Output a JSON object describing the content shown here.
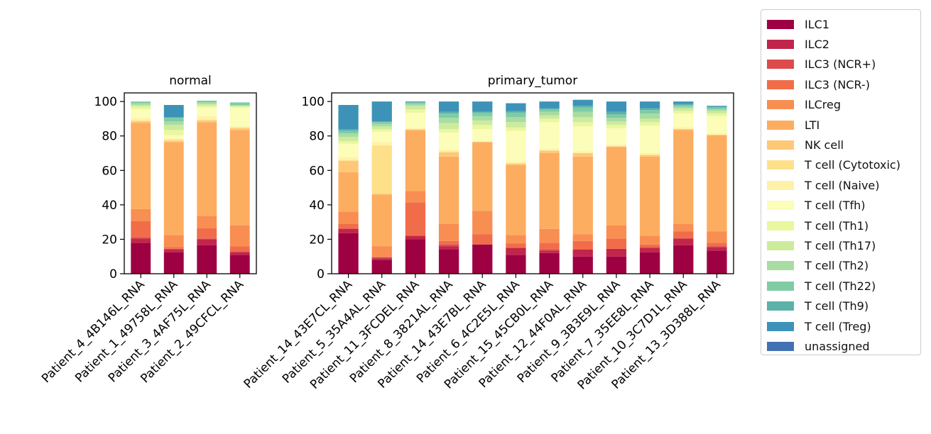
{
  "chart_data": [
    {
      "type": "bar",
      "stacked": true,
      "title": "normal",
      "ylim": [
        0,
        105
      ],
      "yticks": [
        0,
        20,
        40,
        60,
        80,
        100
      ],
      "categories": [
        "Patient_4_4B146L_RNA",
        "Patient_1_49758L_RNA",
        "Patient_3_4AF75L_RNA",
        "Patient_2_49CFCL_RNA"
      ],
      "series": [
        {
          "name": "ILC1",
          "values": [
            18,
            12.5,
            16.5,
            11
          ]
        },
        {
          "name": "ILC2",
          "values": [
            2.5,
            1.5,
            3.5,
            1.5
          ]
        },
        {
          "name": "ILC3 (NCR+)",
          "values": [
            0.5,
            0.5,
            0.5,
            0.5
          ]
        },
        {
          "name": "ILC3 (NCR-)",
          "values": [
            9.5,
            1.0,
            6.0,
            3.0
          ]
        },
        {
          "name": "ILCreg",
          "values": [
            7,
            7,
            7,
            12
          ]
        },
        {
          "name": "LTI",
          "values": [
            50,
            54,
            54.5,
            55.5
          ]
        },
        {
          "name": "NK cell",
          "values": [
            1,
            0.5,
            1,
            1
          ]
        },
        {
          "name": "T cell (Cytotoxic)",
          "values": [
            0.5,
            1.0,
            0.5,
            0.5
          ]
        },
        {
          "name": "T cell (Naive)",
          "values": [
            1.5,
            0.5,
            2.0,
            0.5
          ]
        },
        {
          "name": "T cell (Tfh)",
          "values": [
            5,
            2,
            5,
            11
          ]
        },
        {
          "name": "T cell (Th1)",
          "values": [
            1.5,
            3.0,
            1.0,
            0.5
          ]
        },
        {
          "name": "T cell (Th17)",
          "values": [
            1,
            3,
            1,
            0.5
          ]
        },
        {
          "name": "T cell (Th2)",
          "values": [
            1,
            2,
            1,
            0.5
          ]
        },
        {
          "name": "T cell (Th22)",
          "values": [
            1,
            2,
            1,
            1.5
          ]
        },
        {
          "name": "T cell (Th9)",
          "values": [
            0,
            0.5,
            0,
            0
          ]
        },
        {
          "name": "T cell (Treg)",
          "values": [
            0,
            7,
            0,
            0
          ]
        },
        {
          "name": "unassigned",
          "values": [
            0,
            0,
            0,
            0
          ]
        }
      ]
    },
    {
      "type": "bar",
      "stacked": true,
      "title": "primary_tumor",
      "ylim": [
        0,
        105
      ],
      "yticks": [
        0,
        20,
        40,
        60,
        80,
        100
      ],
      "categories": [
        "Patient_14_43E7CL_RNA",
        "Patient_5_35A4AL_RNA",
        "Patient_11_3FCDEL_RNA",
        "Patient_8_3821AL_RNA",
        "Patient_14_43E7BL_RNA",
        "Patient_6_4C2E5L_RNA",
        "Patient_15_45CB0L_RNA",
        "Patient_12_44F0AL_RNA",
        "Patient_9_3B3E9L_RNA",
        "Patient_7_35EE8L_RNA",
        "Patient_10_3C7D1L_RNA",
        "Patient_13_3D388L_RNA"
      ],
      "series": [
        {
          "name": "ILC1",
          "values": [
            23.5,
            8,
            20,
            14,
            17,
            11,
            12,
            10,
            10,
            12.5,
            16.5,
            13.5
          ]
        },
        {
          "name": "ILC2",
          "values": [
            2.5,
            1,
            2,
            2,
            0,
            4,
            1.5,
            4,
            4.5,
            2.5,
            4,
            2
          ]
        },
        {
          "name": "ILC3 (NCR+)",
          "values": [
            0.5,
            0.5,
            0,
            1,
            0,
            0,
            0.5,
            0,
            0,
            0.5,
            0,
            0.5
          ]
        },
        {
          "name": "ILC3 (NCR-)",
          "values": [
            2.5,
            0.5,
            19.5,
            2,
            6,
            2.5,
            4,
            5,
            6,
            1.5,
            4,
            2
          ]
        },
        {
          "name": "ILCreg",
          "values": [
            7,
            6,
            6.5,
            10,
            13.5,
            5,
            8,
            4,
            7.5,
            5,
            4.5,
            6.5
          ]
        },
        {
          "name": "LTI",
          "values": [
            23,
            30,
            35.5,
            39,
            40,
            40.5,
            44,
            45,
            45.5,
            46,
            54.5,
            56
          ]
        },
        {
          "name": "NK cell",
          "values": [
            6.5,
            0.5,
            0,
            2.5,
            0,
            1,
            1.5,
            2,
            0.5,
            1,
            0.5,
            0
          ]
        },
        {
          "name": "T cell (Cytotoxic)",
          "values": [
            0.5,
            28,
            0.5,
            0.5,
            0,
            0,
            0,
            0,
            0,
            0,
            0,
            0
          ]
        },
        {
          "name": "T cell (Naive)",
          "values": [
            1.5,
            2,
            0.5,
            1,
            0.5,
            1,
            1,
            1,
            1,
            1,
            1,
            1
          ]
        },
        {
          "name": "T cell (Tfh)",
          "values": [
            8,
            6,
            9,
            10,
            7,
            18,
            15.5,
            14.5,
            9.5,
            16,
            8,
            10
          ]
        },
        {
          "name": "T cell (Th1)",
          "values": [
            1.5,
            1.5,
            2,
            2,
            2.5,
            2,
            2,
            2.5,
            2,
            2,
            1.5,
            1.5
          ]
        },
        {
          "name": "T cell (Th17)",
          "values": [
            2.5,
            1.5,
            2,
            3.5,
            2.5,
            3,
            2,
            3,
            2,
            2,
            1.5,
            1.5
          ]
        },
        {
          "name": "T cell (Th2)",
          "values": [
            2,
            1.5,
            1,
            3,
            2.5,
            3,
            2,
            3,
            2,
            3,
            1,
            1
          ]
        },
        {
          "name": "T cell (Th22)",
          "values": [
            1.5,
            1,
            1,
            2.5,
            2,
            2.5,
            1.5,
            2.5,
            2,
            2,
            1,
            1
          ]
        },
        {
          "name": "T cell (Th9)",
          "values": [
            1,
            0.5,
            0,
            1,
            0.5,
            1,
            0.5,
            1,
            1.5,
            1,
            0.5,
            0.5
          ]
        },
        {
          "name": "T cell (Treg)",
          "values": [
            14,
            11.5,
            0.5,
            6,
            6,
            4.5,
            4,
            3.5,
            6,
            4,
            1.5,
            0.5
          ]
        },
        {
          "name": "unassigned",
          "values": [
            0,
            0,
            0,
            0,
            0,
            0,
            0,
            0,
            0,
            0,
            0,
            0
          ]
        }
      ]
    }
  ],
  "legend": {
    "placement": "outside-right",
    "items": [
      {
        "label": "ILC1",
        "color": "#9e0142"
      },
      {
        "label": "ILC2",
        "color": "#c2254b"
      },
      {
        "label": "ILC3 (NCR+)",
        "color": "#dd4a4c"
      },
      {
        "label": "ILC3 (NCR-)",
        "color": "#f16d49"
      },
      {
        "label": "ILCreg",
        "color": "#f98e52"
      },
      {
        "label": "LTI",
        "color": "#fdad60"
      },
      {
        "label": "NK cell",
        "color": "#fec877"
      },
      {
        "label": "T cell (Cytotoxic)",
        "color": "#fee08b"
      },
      {
        "label": "T cell (Naive)",
        "color": "#fff1a8"
      },
      {
        "label": "T cell (Tfh)",
        "color": "#fbfdb8"
      },
      {
        "label": "T cell (Th1)",
        "color": "#eaf79e"
      },
      {
        "label": "T cell (Th17)",
        "color": "#cdeb9d"
      },
      {
        "label": "T cell (Th2)",
        "color": "#a8dca2"
      },
      {
        "label": "T cell (Th22)",
        "color": "#7fcca4"
      },
      {
        "label": "T cell (Th9)",
        "color": "#5bb2a9"
      },
      {
        "label": "T cell (Treg)",
        "color": "#3d93b7"
      },
      {
        "label": "unassigned",
        "color": "#4372b3"
      }
    ]
  }
}
